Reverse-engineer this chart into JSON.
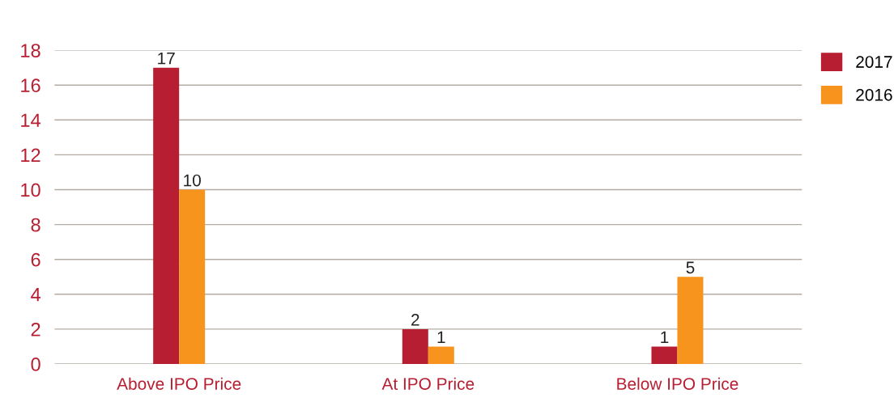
{
  "chart_data": {
    "type": "bar",
    "categories": [
      "Above IPO Price",
      "At IPO Price",
      "Below IPO Price"
    ],
    "series": [
      {
        "name": "2017",
        "color": "#b81e31",
        "values": [
          17,
          2,
          1
        ]
      },
      {
        "name": "2016",
        "color": "#f7941d",
        "values": [
          10,
          1,
          5
        ]
      }
    ],
    "ylim": [
      0,
      18
    ],
    "yticks": [
      0,
      2,
      4,
      6,
      8,
      10,
      12,
      14,
      16,
      18
    ],
    "grid": "y",
    "legend": "top right",
    "data_labels": true
  }
}
